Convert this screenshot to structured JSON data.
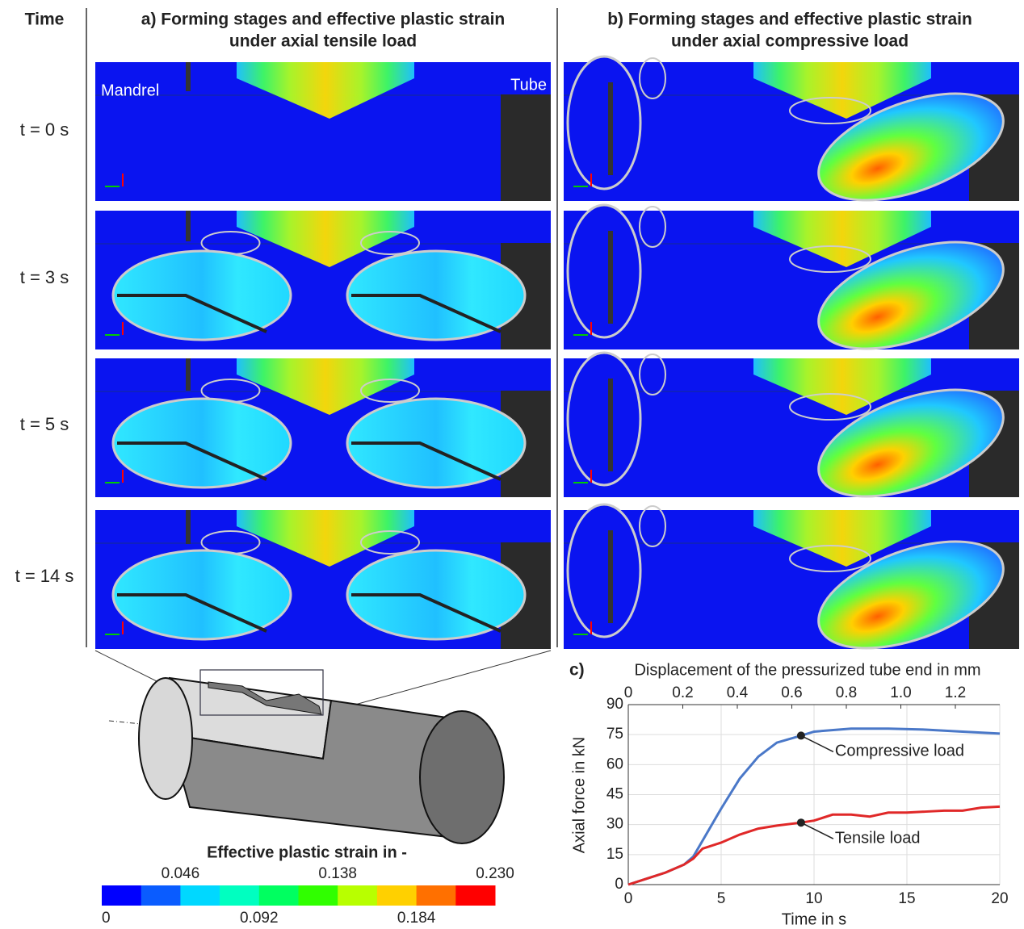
{
  "header": {
    "time": "Time"
  },
  "panel_a": {
    "title": "a) Forming stages and effective plastic strain",
    "subtitle": "under axial tensile load",
    "mandrel": "Mandrel",
    "tube": "Tube"
  },
  "panel_b": {
    "title": "b) Forming stages and effective plastic strain",
    "subtitle": "under axial compressive load"
  },
  "times": [
    "t = 0 s",
    "t = 3 s",
    "t = 5 s",
    "t = 14 s"
  ],
  "colorbar": {
    "title": "Effective plastic strain in -",
    "lim": [
      0,
      0.23
    ],
    "ticks": [
      0,
      0.046,
      0.092,
      0.138,
      0.184,
      {
        "value": 0.23,
        "label": "0.230"
      }
    ],
    "colors": [
      "#0000ff",
      "#0a5cff",
      "#00d8ff",
      "#00ffc0",
      "#00ff60",
      "#30ff00",
      "#b8ff00",
      "#ffd000",
      "#ff7000",
      "#ff0000"
    ]
  },
  "chart_data": {
    "type": "line",
    "title": "c)",
    "x2label": "Displacement of the pressurized tube end in mm",
    "xlabel": "Time in s",
    "ylabel": "Axial  force in kN",
    "xlim": [
      0,
      20
    ],
    "xticks": [
      0,
      5,
      10,
      15,
      20
    ],
    "x2lim": [
      0,
      1.363
    ],
    "x2ticks": [
      0,
      0.2,
      0.4,
      0.6,
      0.8,
      {
        "value": 1.0,
        "label": "1.0"
      },
      1.2
    ],
    "ylim": [
      0,
      90
    ],
    "yticks": [
      0,
      15,
      30,
      45,
      60,
      75,
      90
    ],
    "grid": true,
    "series": [
      {
        "name": "Compressive load",
        "color": "#4a78c8",
        "x": [
          0,
          1,
          2,
          3,
          3.5,
          4,
          5,
          6,
          7,
          8,
          9.3,
          10,
          12,
          14,
          16,
          18,
          20
        ],
        "values": [
          0,
          3,
          6,
          10,
          14,
          22,
          38,
          53,
          64,
          71,
          74.5,
          76.5,
          78,
          78,
          77.5,
          76.5,
          75.5
        ]
      },
      {
        "name": "Tensile load",
        "color": "#e02828",
        "x": [
          0,
          1,
          2,
          3,
          3.5,
          4,
          5,
          6,
          7,
          8,
          9.3,
          10,
          11,
          12,
          13,
          14,
          15,
          16,
          17,
          18,
          19,
          20
        ],
        "values": [
          0,
          3,
          6,
          10,
          13,
          18,
          21,
          25,
          28,
          29.5,
          31,
          32,
          35,
          35,
          34,
          36,
          36,
          36.5,
          37,
          37,
          38.5,
          39
        ]
      }
    ],
    "annotations": [
      {
        "text": "Compressive load",
        "x": 9.3,
        "y": 74.5
      },
      {
        "text": "Tensile load",
        "x": 9.3,
        "y": 31
      }
    ]
  }
}
